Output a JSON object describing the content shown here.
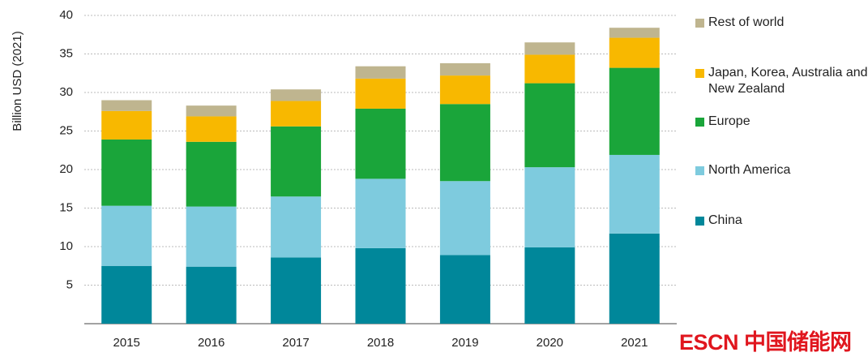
{
  "chart_data": {
    "type": "stacked_bar",
    "y_label": "Billion USD (2021)",
    "categories": [
      "2015",
      "2016",
      "2017",
      "2018",
      "2019",
      "2020",
      "2021"
    ],
    "series": [
      {
        "name": "China",
        "color": "#00879a",
        "values": [
          7.5,
          7.4,
          8.6,
          9.8,
          8.9,
          9.9,
          11.7
        ]
      },
      {
        "name": "North America",
        "color": "#7ecbde",
        "values": [
          7.8,
          7.8,
          7.9,
          9.0,
          9.6,
          10.4,
          10.2
        ]
      },
      {
        "name": "Europe",
        "color": "#1aa53a",
        "values": [
          8.6,
          8.4,
          9.1,
          9.1,
          10.0,
          10.9,
          11.3
        ]
      },
      {
        "name": "Japan, Korea, Australia and New Zealand",
        "color": "#f8b800",
        "values": [
          3.7,
          3.3,
          3.3,
          3.9,
          3.7,
          3.7,
          3.9
        ]
      },
      {
        "name": "Rest of world",
        "color": "#bfb58f",
        "values": [
          1.4,
          1.4,
          1.5,
          1.6,
          1.6,
          1.6,
          1.3
        ]
      }
    ],
    "ylim": [
      0,
      40
    ],
    "yticks": [
      5,
      10,
      15,
      20,
      25,
      30,
      35,
      40
    ],
    "grid": true,
    "watermark": "ESCN 中国储能网"
  }
}
